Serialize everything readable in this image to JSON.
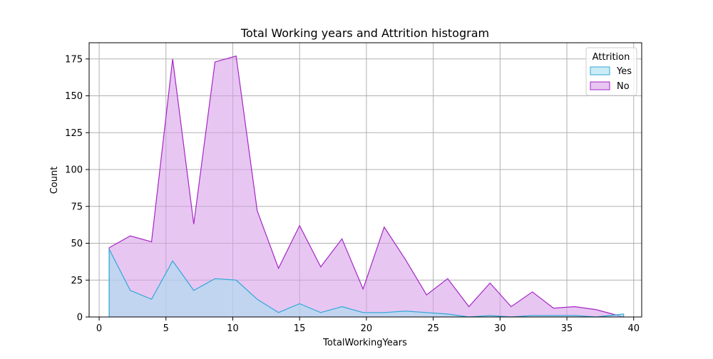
{
  "chart_data": {
    "type": "area",
    "title": "Total Working years and Attrition histogram",
    "xlabel": "TotalWorkingYears",
    "ylabel": "Count",
    "xlim": [
      -0.75,
      40.6
    ],
    "ylim": [
      0,
      186
    ],
    "x_ticks": [
      0,
      5,
      10,
      15,
      20,
      25,
      30,
      35,
      40
    ],
    "y_ticks": [
      0,
      25,
      50,
      75,
      100,
      125,
      150,
      175
    ],
    "grid": true,
    "legend": {
      "title": "Attrition",
      "position": "top-right"
    },
    "x": [
      0.75,
      2.33,
      3.92,
      5.5,
      7.08,
      8.67,
      10.25,
      11.83,
      13.42,
      15.0,
      16.58,
      18.17,
      19.75,
      21.33,
      22.92,
      24.5,
      26.08,
      27.67,
      29.25,
      30.83,
      32.42,
      34.0,
      35.58,
      37.17,
      39.25
    ],
    "series": [
      {
        "name": "Yes",
        "line_color": "#2ea8d6",
        "fill_color": "#a9dff0",
        "values": [
          46,
          18,
          12,
          38,
          18,
          26,
          25,
          12,
          3,
          9,
          3,
          7,
          3,
          3,
          4,
          3,
          2,
          0,
          1,
          0,
          1,
          1,
          1,
          0,
          2
        ]
      },
      {
        "name": "No",
        "line_color": "#a526c4",
        "fill_color": "#d7a0ea",
        "values": [
          47,
          55,
          51,
          175,
          63,
          173,
          177,
          72,
          33,
          62,
          34,
          53,
          19,
          61,
          39,
          15,
          26,
          7,
          23,
          7,
          17,
          6,
          7,
          5,
          0
        ]
      }
    ]
  }
}
